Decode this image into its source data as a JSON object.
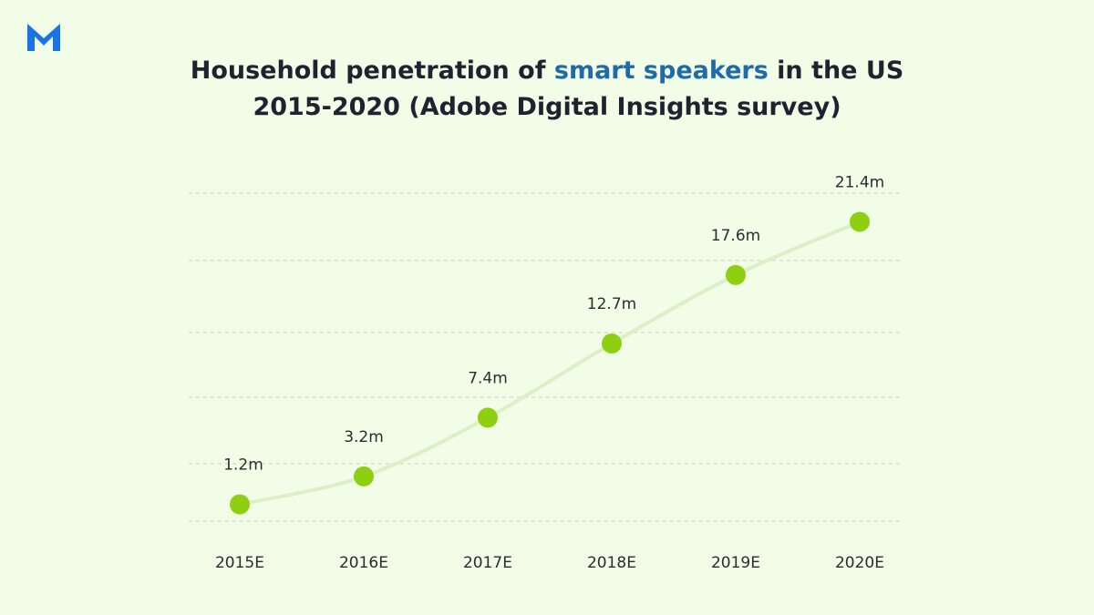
{
  "header": {
    "title_part1": "Household penetration of ",
    "title_highlight": "smart speakers",
    "title_part2": " in the US",
    "subtitle": "2015-2020 (Adobe Digital Insights survey)"
  },
  "logo": {
    "icon": "m-logo-icon",
    "color": "#1a73e8"
  },
  "chart_data": {
    "type": "line",
    "categories": [
      "2015E",
      "2016E",
      "2017E",
      "2018E",
      "2019E",
      "2020E"
    ],
    "values": [
      1.2,
      3.2,
      7.4,
      12.7,
      17.6,
      21.4
    ],
    "data_labels": [
      "1.2m",
      "3.2m",
      "7.4m",
      "12.7m",
      "17.6m",
      "21.4m"
    ],
    "title": "Household penetration of smart speakers in the US 2015-2020 (Adobe Digital Insights survey)",
    "xlabel": "",
    "ylabel": "",
    "ylim": [
      0,
      25
    ],
    "grid": true,
    "legend": "none",
    "colors": {
      "marker": "#8ecf12",
      "line": "#dcefc6",
      "grid": "#c9d4bf",
      "background": "#f1fde6"
    }
  }
}
